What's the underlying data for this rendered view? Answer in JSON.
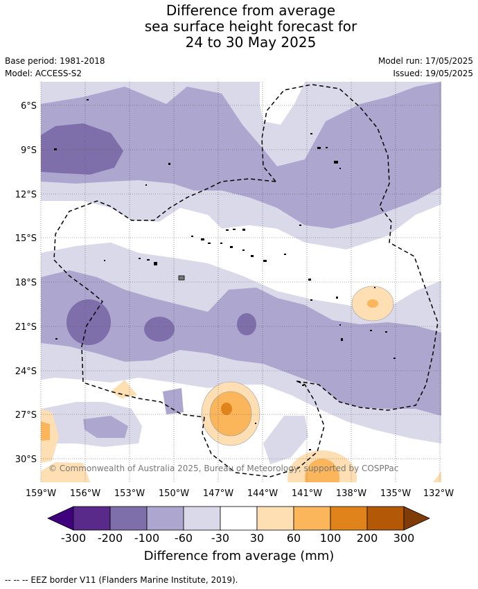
{
  "header": {
    "title_lines": [
      "Difference from average",
      "sea surface height forecast for",
      "24 to 30 May 2025"
    ],
    "base_period": "Base period: 1981-2018",
    "model": "Model: ACCESS-S2",
    "model_run": "Model run: 17/05/2025",
    "issued": "Issued: 19/05/2025"
  },
  "map": {
    "lon_ticks": [
      "159°W",
      "156°W",
      "153°W",
      "150°W",
      "147°W",
      "144°W",
      "141°W",
      "138°W",
      "135°W",
      "132°W"
    ],
    "lat_ticks": [
      "6°S",
      "9°S",
      "12°S",
      "15°S",
      "18°S",
      "21°S",
      "24°S",
      "27°S",
      "30°S"
    ],
    "copyright": "© Commonwealth of Australia 2025, Bureau of Meteorology, supported by COSPPac"
  },
  "colorbar": {
    "labels": [
      "-300",
      "-200",
      "-100",
      "-60",
      "-30",
      "30",
      "60",
      "100",
      "200",
      "300"
    ],
    "colors": [
      "#3f007d",
      "#5a2a8a",
      "#7e6faa",
      "#ada7cf",
      "#d9d9ea",
      "#ffffff",
      "#fedfb3",
      "#fbb55b",
      "#e0831b",
      "#b35806",
      "#7f3b08"
    ],
    "title": "Difference from average (mm)"
  },
  "footer": {
    "legend": "--  --  -- EEZ border V11 (Flanders Marine Institute, 2019)."
  }
}
